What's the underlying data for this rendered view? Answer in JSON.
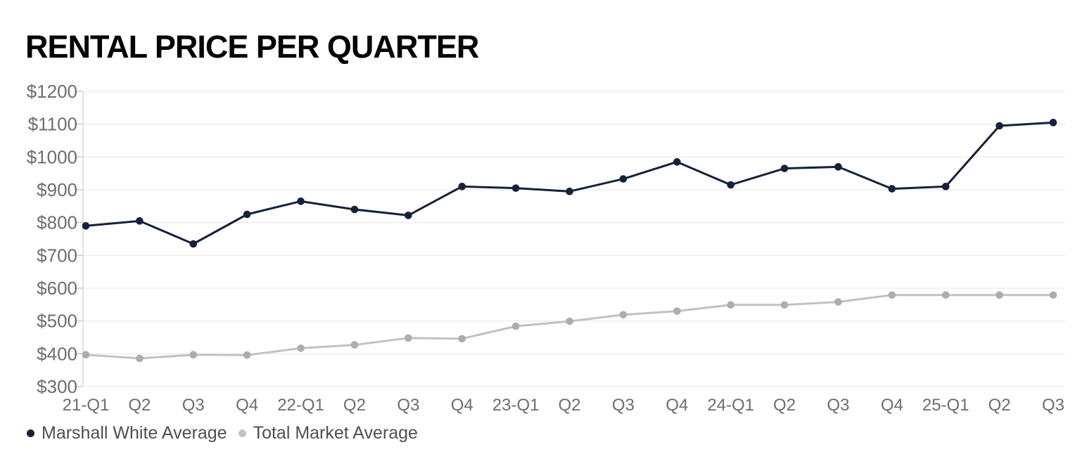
{
  "title": "RENTAL PRICE PER QUARTER",
  "legend": [
    {
      "label": "Marshall White Average",
      "dot_color": "#16213a"
    },
    {
      "label": "Total Market Average",
      "dot_color": "#c2c2c2"
    }
  ],
  "chart_data": {
    "type": "line",
    "title": "RENTAL PRICE PER QUARTER",
    "categories": [
      "21-Q1",
      "Q2",
      "Q3",
      "Q4",
      "22-Q1",
      "Q2",
      "Q3",
      "Q4",
      "23-Q1",
      "Q2",
      "Q3",
      "Q4",
      "24-Q1",
      "Q2",
      "Q3",
      "Q4",
      "25-Q1",
      "Q2",
      "Q3"
    ],
    "series": [
      {
        "name": "Marshall White Average",
        "line_color": "#16213a",
        "point_color": "#16213a",
        "values": [
          790,
          805,
          735,
          825,
          865,
          840,
          822,
          910,
          905,
          895,
          933,
          985,
          915,
          965,
          970,
          903,
          910,
          1095,
          1105
        ]
      },
      {
        "name": "Total Market Average",
        "line_color": "#c2c2c2",
        "point_color": "#adadad",
        "values": [
          397,
          386,
          397,
          396,
          417,
          427,
          448,
          446,
          484,
          499,
          519,
          530,
          549,
          549,
          558,
          579,
          579,
          579,
          579
        ]
      }
    ],
    "ylim": [
      300,
      1200
    ],
    "y_tick_step": 100,
    "y_tick_prefix": "$",
    "grid": true,
    "legend_position": "bottom-left"
  },
  "style": {
    "background": "#ffffff",
    "title_color": "#050505",
    "grid_color": "#ececec",
    "axis_color": "#d7d7d7",
    "tick_color": "#c9c9c9",
    "tick_label_color": "#6e6e6e",
    "legend_text_color": "#4f4f4f"
  }
}
